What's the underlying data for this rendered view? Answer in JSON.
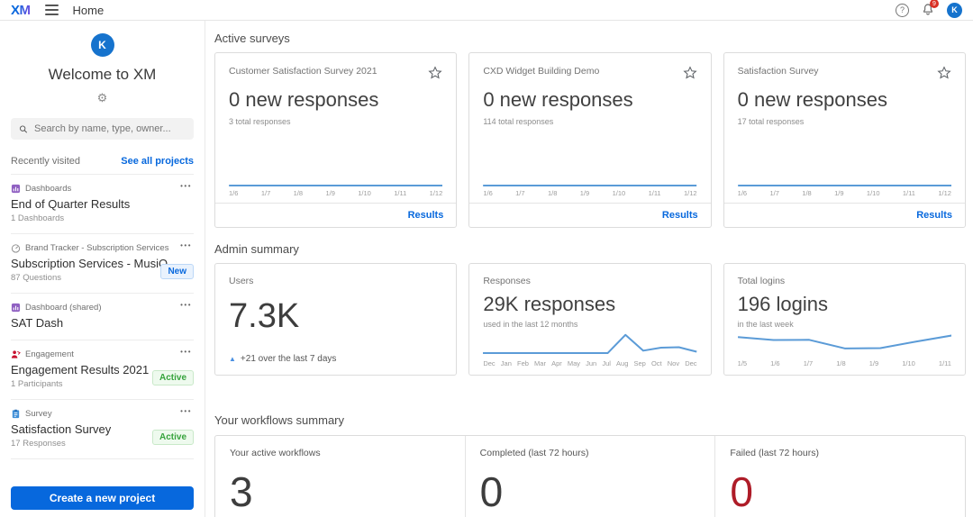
{
  "colors": {
    "accent_blue": "#0768dd",
    "spark_blue": "#5b9bd7",
    "badge_new_text": "#0768dd",
    "badge_active_text": "#36a33c",
    "failed_red": "#ae1c28",
    "avatar_blue": "#1673cd",
    "notification_red": "#d93025"
  },
  "icons": {
    "gear": "⚙",
    "ellipsis": "•••",
    "triangle_up": "▲",
    "question": "?"
  },
  "topbar": {
    "logo": "XM",
    "page_title": "Home",
    "notification_badge": "9",
    "avatar_initial": "K"
  },
  "sidebar": {
    "avatar_initial": "K",
    "welcome": "Welcome to XM",
    "search_placeholder": "Search by name, type, owner...",
    "recently_visited": "Recently visited",
    "see_all": "See all projects",
    "items": [
      {
        "type": "Dashboards",
        "title": "End of Quarter Results",
        "subtitle": "1 Dashboards",
        "badge": ""
      },
      {
        "type": "Brand Tracker - Subscription Services",
        "title": "Subscription Services - MusiQ",
        "subtitle": "87 Questions",
        "badge": "New"
      },
      {
        "type": "Dashboard (shared)",
        "title": "SAT Dash",
        "subtitle": "",
        "badge": ""
      },
      {
        "type": "Engagement",
        "title": "Engagement Results 2021",
        "subtitle": "1 Participants",
        "badge": "Active"
      },
      {
        "type": "Survey",
        "title": "Satisfaction Survey",
        "subtitle": "17 Responses",
        "badge": "Active"
      }
    ],
    "create_button": "Create a new project"
  },
  "active_surveys": {
    "heading": "Active surveys",
    "results_label": "Results",
    "cards": [
      {
        "title": "Customer Satisfaction Survey 2021",
        "headline": "0 new responses",
        "total": "3 total responses"
      },
      {
        "title": "CXD Widget Building Demo",
        "headline": "0 new responses",
        "total": "114 total responses"
      },
      {
        "title": "Satisfaction Survey",
        "headline": "0 new responses",
        "total": "17 total responses"
      }
    ]
  },
  "admin_summary": {
    "heading": "Admin summary",
    "users": {
      "label": "Users",
      "value": "7.3K",
      "delta": "+21 over the last 7 days"
    },
    "responses": {
      "label": "Responses",
      "value": "29K responses",
      "caption": "used in the last 12 months"
    },
    "logins": {
      "label": "Total logins",
      "value": "196 logins",
      "caption": "in the last week"
    }
  },
  "workflows": {
    "heading": "Your workflows summary",
    "columns": [
      {
        "label": "Your active workflows",
        "value": "3"
      },
      {
        "label": "Completed (last 72 hours)",
        "value": "0"
      },
      {
        "label": "Failed (last 72 hours)",
        "value": "0"
      }
    ]
  },
  "chart_data": [
    {
      "type": "line",
      "title": "Customer Satisfaction Survey 2021 new responses",
      "x": [
        "1/6",
        "1/7",
        "1/8",
        "1/9",
        "1/10",
        "1/11",
        "1/12"
      ],
      "values": [
        0,
        0,
        0,
        0,
        0,
        0,
        0
      ],
      "ylim": [
        0,
        10
      ],
      "color": "#5b9bd7"
    },
    {
      "type": "line",
      "title": "CXD Widget Building Demo new responses",
      "x": [
        "1/6",
        "1/7",
        "1/8",
        "1/9",
        "1/10",
        "1/11",
        "1/12"
      ],
      "values": [
        0,
        0,
        0,
        0,
        0,
        0,
        0
      ],
      "ylim": [
        0,
        10
      ],
      "color": "#5b9bd7"
    },
    {
      "type": "line",
      "title": "Satisfaction Survey new responses",
      "x": [
        "1/6",
        "1/7",
        "1/8",
        "1/9",
        "1/10",
        "1/11",
        "1/12"
      ],
      "values": [
        0,
        0,
        0,
        0,
        0,
        0,
        0
      ],
      "ylim": [
        0,
        10
      ],
      "color": "#5b9bd7"
    },
    {
      "type": "line",
      "title": "Responses used in the last 12 months",
      "x": [
        "Dec",
        "Jan",
        "Feb",
        "Mar",
        "Apr",
        "May",
        "Jun",
        "Jul",
        "Aug",
        "Sep",
        "Oct",
        "Nov",
        "Dec"
      ],
      "values": [
        4,
        4,
        4,
        4,
        4,
        4,
        4,
        4,
        85,
        15,
        28,
        30,
        10
      ],
      "ylim": [
        0,
        100
      ],
      "color": "#5b9bd7"
    },
    {
      "type": "line",
      "title": "Total logins in the last week",
      "x": [
        "1/5",
        "1/6",
        "1/7",
        "1/8",
        "1/9",
        "1/10",
        "1/11"
      ],
      "values": [
        75,
        62,
        63,
        25,
        26,
        55,
        82
      ],
      "ylim": [
        0,
        100
      ],
      "color": "#5b9bd7"
    }
  ]
}
